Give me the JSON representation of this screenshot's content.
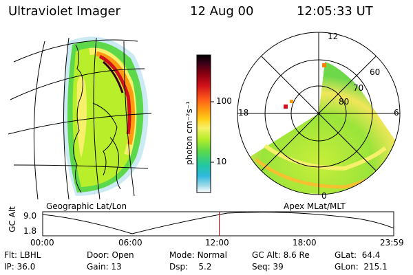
{
  "header": {
    "title": "Ultraviolet Imager",
    "date": "12 Aug 00",
    "time": "12:05:33 UT"
  },
  "colorbar": {
    "unit_label": "photon cm⁻²s⁻¹",
    "ticks": [
      "100",
      "10"
    ],
    "colors": [
      "#000000",
      "#3a0018",
      "#8b0010",
      "#d0101a",
      "#ff5a1a",
      "#ff9a10",
      "#ffd21a",
      "#f6f06a",
      "#b8ee2a",
      "#5cd84a",
      "#20c8a0",
      "#30b8e0",
      "#a0dce8",
      "#ffffff"
    ]
  },
  "panels": {
    "left_label": "Geographic Lat/Lon",
    "right_label": "Apex MLat/MLT"
  },
  "polar": {
    "mlt_labels": [
      "12",
      "18",
      "6",
      "0"
    ],
    "lat_labels": [
      "60",
      "70",
      "80"
    ]
  },
  "timeline": {
    "y_label": "GC Alt",
    "y_ticks": [
      "9.0",
      "1.8"
    ],
    "x_ticks": [
      "00:00",
      "06:00",
      "12:00",
      "18:00",
      "23:59"
    ],
    "current_fraction": 0.503
  },
  "info": {
    "row1": [
      {
        "label": "Flt:",
        "value": "LBHL"
      },
      {
        "label": "Door:",
        "value": "Open"
      },
      {
        "label": "Mode:",
        "value": "Normal"
      },
      {
        "label": "GC Alt:",
        "value": "8.6 Re"
      },
      {
        "label": "GLat:",
        "value": "64.4"
      }
    ],
    "row2": [
      {
        "label": "IP:",
        "value": "36.0"
      },
      {
        "label": "Gain:",
        "value": "13"
      },
      {
        "label": "Dsp:",
        "value": "5.2"
      },
      {
        "label": "Seq:",
        "value": "39"
      },
      {
        "label": "GLon:",
        "value": "215.1"
      }
    ]
  }
}
